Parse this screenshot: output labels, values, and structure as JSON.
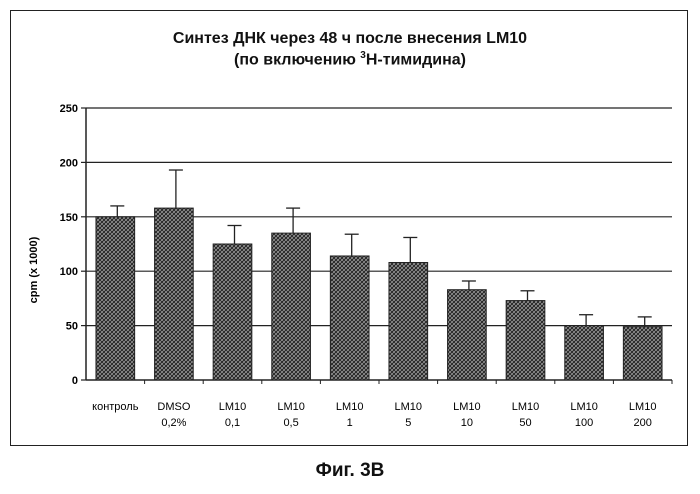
{
  "chart_data": {
    "type": "bar",
    "title_line1": "Синтез ДНК через 48 ч после внесения LM10",
    "title_line2_prefix": "(по включению ",
    "title_line2_sup": "3",
    "title_line2_suffix": "H-тимидина)",
    "ylabel": "cpm  (x 1000)",
    "xlabel": "",
    "ylim": [
      0,
      250
    ],
    "yticks": [
      0,
      50,
      100,
      150,
      200,
      250
    ],
    "grid": true,
    "categories": [
      [
        "контроль",
        ""
      ],
      [
        "DMSO",
        "0,2%"
      ],
      [
        "LM10",
        "0,1"
      ],
      [
        "LM10",
        "0,5"
      ],
      [
        "LM10",
        "1"
      ],
      [
        "LM10",
        "5"
      ],
      [
        "LM10",
        "10"
      ],
      [
        "LM10",
        "50"
      ],
      [
        "LM10",
        "100"
      ],
      [
        "LM10",
        "200"
      ]
    ],
    "values": [
      150,
      158,
      125,
      135,
      114,
      108,
      83,
      73,
      50,
      49
    ],
    "errors": [
      10,
      35,
      17,
      23,
      20,
      23,
      8,
      9,
      10,
      9
    ]
  },
  "caption": "Фиг. 3В",
  "colors": {
    "bar_fill": "#8a8a8a",
    "bar_stroke": "#222222",
    "grid": "#222222"
  }
}
